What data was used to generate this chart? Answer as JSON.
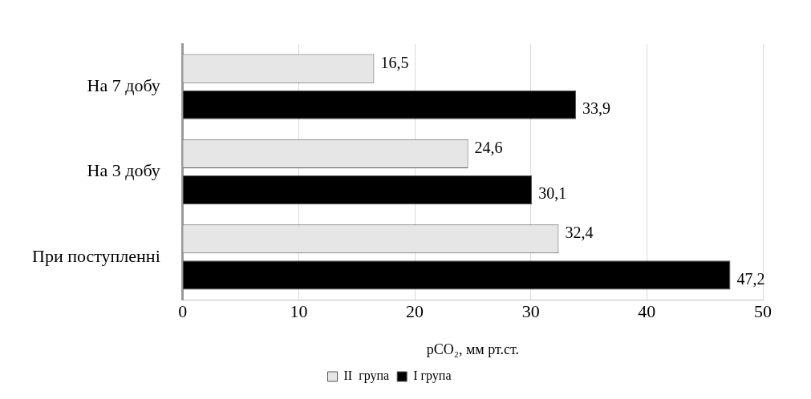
{
  "chart_data": {
    "type": "bar",
    "orientation": "horizontal",
    "categories": [
      "На 7 добу",
      "На 3 добу",
      "При поступленні"
    ],
    "series": [
      {
        "name": "II  група",
        "color": "#e6e6e6",
        "values": [
          16.5,
          24.6,
          32.4
        ],
        "value_labels": [
          "16,5",
          "24,6",
          "32,4"
        ]
      },
      {
        "name": "I група",
        "color": "#000000",
        "values": [
          33.9,
          30.1,
          47.2
        ],
        "value_labels": [
          "33,9",
          "30,1",
          "47,2"
        ]
      }
    ],
    "xlabel": "pCO₂, мм рт.ст.",
    "xlim": [
      0,
      50
    ],
    "xticks": [
      0,
      10,
      20,
      30,
      40,
      50
    ],
    "grid": "x",
    "legend": "bottom"
  }
}
